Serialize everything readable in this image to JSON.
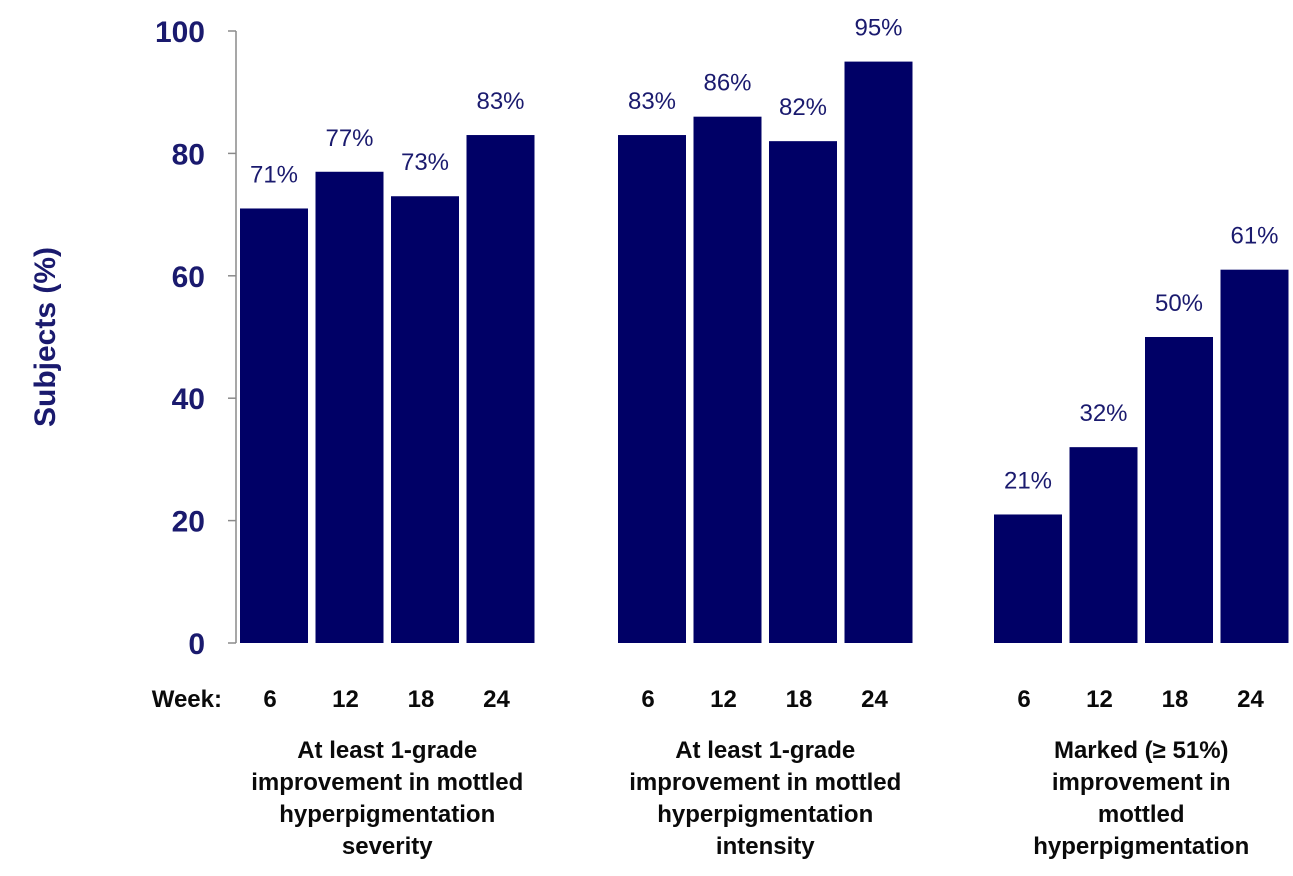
{
  "chart_data": {
    "type": "bar",
    "ylabel": "Subjects (%)",
    "ylim": [
      0,
      100
    ],
    "yticks": [
      "0",
      "20",
      "40",
      "60",
      "80",
      "100"
    ],
    "x_prefix": "Week:",
    "week_labels": [
      "6",
      "12",
      "18",
      "24"
    ],
    "bar_color": "#000066",
    "groups": [
      {
        "label_lines": [
          "At least 1-grade",
          "improvement in mottled",
          "hyperpigmentation",
          "severity"
        ],
        "values": [
          71,
          77,
          73,
          83
        ],
        "labels": [
          "71%",
          "77%",
          "73%",
          "83%"
        ]
      },
      {
        "label_lines": [
          "At least 1-grade",
          "improvement in mottled",
          "hyperpigmentation",
          "intensity"
        ],
        "values": [
          83,
          86,
          82,
          95
        ],
        "labels": [
          "83%",
          "86%",
          "82%",
          "95%"
        ]
      },
      {
        "label_lines": [
          "Marked (≥ 51%)",
          "improvement in",
          "mottled",
          "hyperpigmentation"
        ],
        "values": [
          21,
          32,
          50,
          61
        ],
        "labels": [
          "21%",
          "32%",
          "50%",
          "61%"
        ]
      }
    ]
  }
}
